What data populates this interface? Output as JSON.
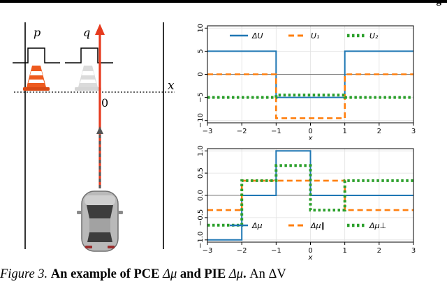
{
  "header_fragment": "g",
  "scene": {
    "label_p": "p",
    "label_q": "q",
    "label_x": "x",
    "label_0": "0"
  },
  "chart_data": [
    {
      "type": "line",
      "title": "",
      "xlabel": "x",
      "ylabel": "",
      "xlim": [
        -3,
        3
      ],
      "ylim": [
        -10.5,
        10.5
      ],
      "xticks": [
        "−3",
        "−2",
        "−1",
        "0",
        "1",
        "2",
        "3"
      ],
      "yticks": [
        "10",
        "5",
        "0",
        "−5",
        "−10"
      ],
      "grid": true,
      "legend": "top",
      "x": [
        -3,
        -1,
        -1,
        1,
        1,
        3
      ],
      "series": [
        {
          "name": "ΔU",
          "color": "#1f77b4",
          "style": "solid",
          "values": [
            5,
            5,
            -5,
            -5,
            5,
            5
          ]
        },
        {
          "name": "U₁",
          "color": "#ff7f0e",
          "style": "dashed",
          "values": [
            0,
            0,
            -9.5,
            -9.5,
            0,
            0
          ]
        },
        {
          "name": "U₂",
          "color": "#2ca02c",
          "style": "dotted",
          "values": [
            -5,
            -5,
            -4.5,
            -4.5,
            -5,
            -5
          ]
        }
      ]
    },
    {
      "type": "line",
      "title": "",
      "xlabel": "x",
      "ylabel": "",
      "xlim": [
        -3,
        3
      ],
      "ylim": [
        -1.05,
        1.05
      ],
      "xticks": [
        "−3",
        "−2",
        "−1",
        "0",
        "1",
        "2",
        "3"
      ],
      "yticks": [
        "1.0",
        "0.5",
        "0.0",
        "−0.5",
        "−1.0"
      ],
      "grid": true,
      "legend": "bottom",
      "x": [
        -3,
        -2,
        -2,
        -1,
        -1,
        0,
        0,
        1,
        1,
        3
      ],
      "series": [
        {
          "name": "Δμ",
          "color": "#1f77b4",
          "style": "solid",
          "values": [
            -1,
            -1,
            0,
            0,
            1,
            1,
            0,
            0,
            0,
            0
          ]
        },
        {
          "name": "Δμ∥",
          "color": "#ff7f0e",
          "style": "dashed",
          "values": [
            -0.33,
            -0.33,
            0.33,
            0.33,
            0.33,
            0.33,
            0.33,
            0.33,
            -0.33,
            -0.33
          ]
        },
        {
          "name": "Δμ⊥",
          "color": "#2ca02c",
          "style": "dotted",
          "values": [
            -0.67,
            -0.67,
            0.33,
            0.33,
            0.67,
            0.67,
            -0.33,
            -0.33,
            0.33,
            0.33
          ]
        }
      ]
    }
  ],
  "caption": {
    "label": "Figure 3.",
    "part1": "An example of PCE ",
    "sym1": "Δμ",
    "part2": " and PIE ",
    "sym2": "Δμ",
    "part3": ".",
    "tail": " An ΔV"
  }
}
